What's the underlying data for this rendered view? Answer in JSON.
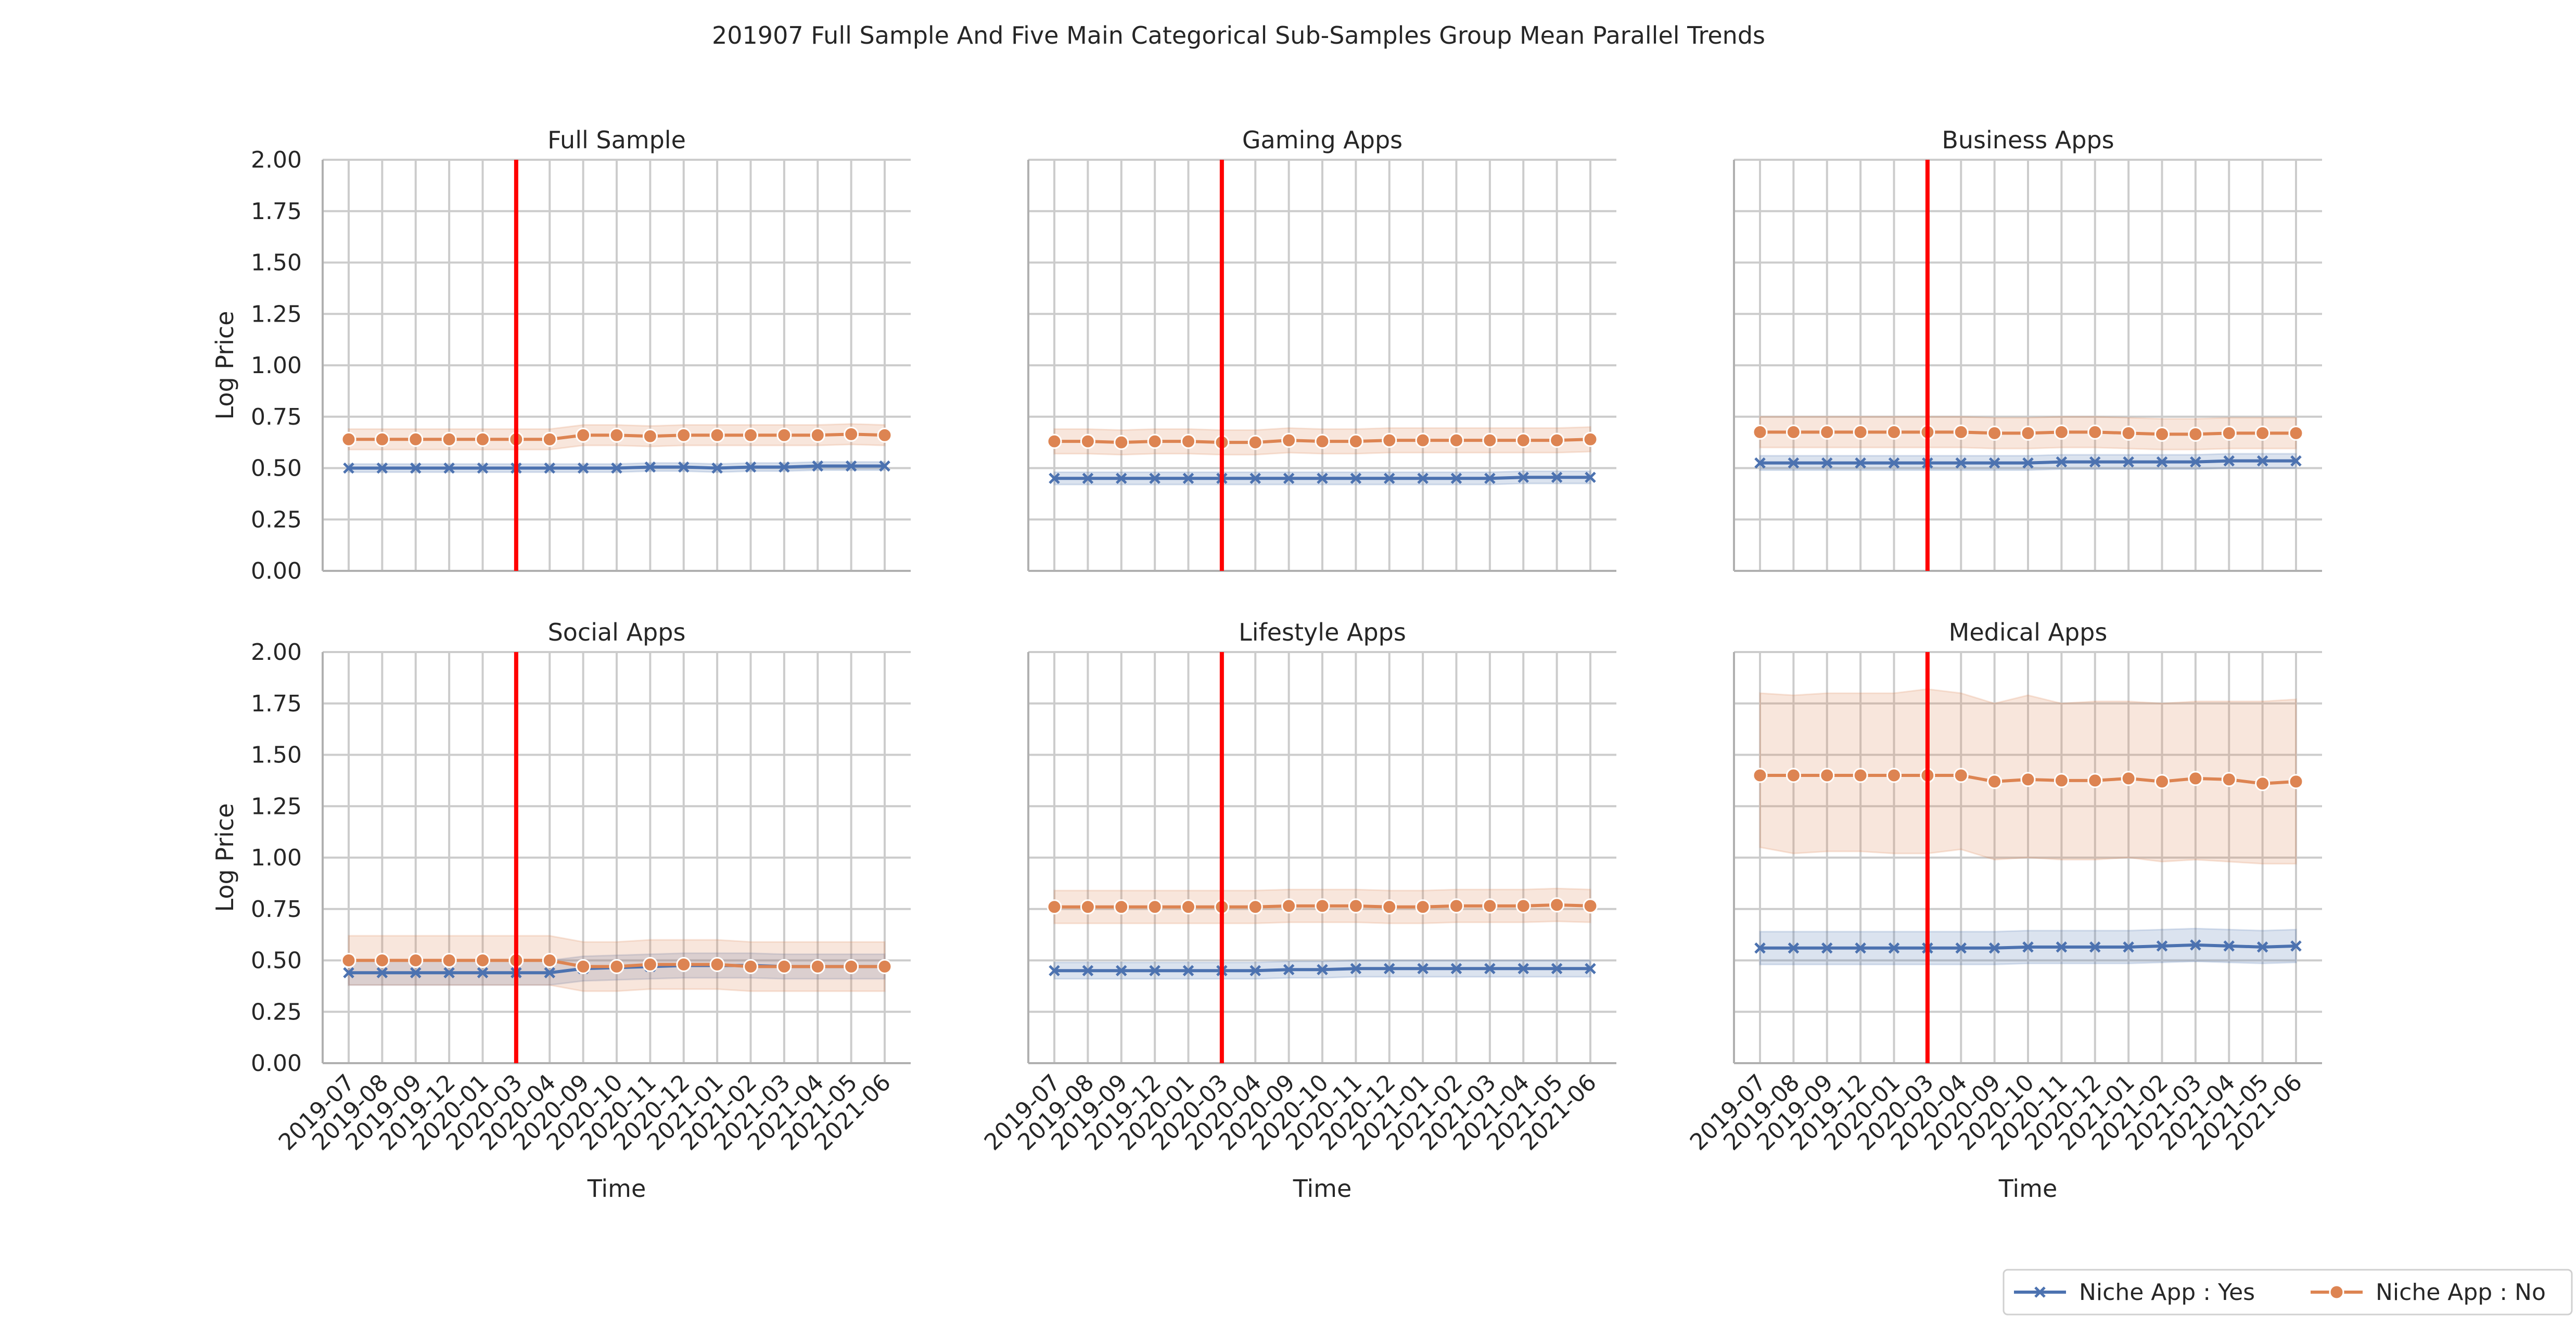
{
  "chart_data": {
    "type": "line",
    "title": "201907 Full Sample And Five Main Categorical Sub-Samples Group Mean Parallel Trends",
    "x": [
      "2019-07",
      "2019-08",
      "2019-09",
      "2019-12",
      "2020-01",
      "2020-03",
      "2020-04",
      "2020-09",
      "2020-10",
      "2020-11",
      "2020-12",
      "2021-01",
      "2021-02",
      "2021-03",
      "2021-04",
      "2021-05",
      "2021-06"
    ],
    "xlabel": "Time",
    "ylabel": "Log Price",
    "ylim": [
      0,
      2
    ],
    "yticks": [
      "0.00",
      "0.25",
      "0.50",
      "0.75",
      "1.00",
      "1.25",
      "1.50",
      "1.75",
      "2.00"
    ],
    "treatment_line_x": "2020-03",
    "grid": true,
    "legend": {
      "placement": "bottom-right",
      "entries": [
        "Niche App : Yes",
        "Niche App : No"
      ]
    },
    "colors": {
      "yes": "#4c72b0",
      "no": "#dd8452",
      "treatment": "#ff0000"
    },
    "panels": [
      {
        "title": "Full Sample",
        "series": [
          {
            "name": "Niche App : Yes",
            "values": [
              0.5,
              0.5,
              0.5,
              0.5,
              0.5,
              0.5,
              0.5,
              0.5,
              0.5,
              0.505,
              0.505,
              0.5,
              0.505,
              0.505,
              0.51,
              0.51,
              0.51
            ],
            "ci_low": [
              0.48,
              0.48,
              0.48,
              0.48,
              0.48,
              0.48,
              0.48,
              0.48,
              0.48,
              0.485,
              0.485,
              0.48,
              0.485,
              0.485,
              0.49,
              0.49,
              0.49
            ],
            "ci_high": [
              0.52,
              0.52,
              0.52,
              0.52,
              0.52,
              0.52,
              0.52,
              0.52,
              0.52,
              0.525,
              0.525,
              0.52,
              0.525,
              0.525,
              0.53,
              0.53,
              0.53
            ]
          },
          {
            "name": "Niche App : No",
            "values": [
              0.64,
              0.64,
              0.64,
              0.64,
              0.64,
              0.64,
              0.64,
              0.66,
              0.66,
              0.655,
              0.66,
              0.66,
              0.66,
              0.66,
              0.66,
              0.665,
              0.66
            ],
            "ci_low": [
              0.59,
              0.59,
              0.59,
              0.59,
              0.59,
              0.59,
              0.59,
              0.61,
              0.61,
              0.605,
              0.61,
              0.61,
              0.61,
              0.61,
              0.61,
              0.615,
              0.61
            ],
            "ci_high": [
              0.69,
              0.69,
              0.69,
              0.69,
              0.69,
              0.69,
              0.69,
              0.71,
              0.71,
              0.705,
              0.71,
              0.71,
              0.71,
              0.71,
              0.71,
              0.715,
              0.71
            ]
          }
        ]
      },
      {
        "title": "Gaming Apps",
        "series": [
          {
            "name": "Niche App : Yes",
            "values": [
              0.45,
              0.45,
              0.45,
              0.45,
              0.45,
              0.45,
              0.45,
              0.45,
              0.45,
              0.45,
              0.45,
              0.45,
              0.45,
              0.45,
              0.455,
              0.455,
              0.455
            ],
            "ci_low": [
              0.42,
              0.42,
              0.42,
              0.42,
              0.42,
              0.42,
              0.42,
              0.42,
              0.42,
              0.42,
              0.42,
              0.42,
              0.42,
              0.42,
              0.425,
              0.425,
              0.425
            ],
            "ci_high": [
              0.48,
              0.48,
              0.48,
              0.48,
              0.48,
              0.48,
              0.48,
              0.48,
              0.48,
              0.48,
              0.48,
              0.48,
              0.48,
              0.48,
              0.485,
              0.485,
              0.485
            ]
          },
          {
            "name": "Niche App : No",
            "values": [
              0.63,
              0.63,
              0.625,
              0.63,
              0.63,
              0.625,
              0.625,
              0.635,
              0.63,
              0.63,
              0.635,
              0.635,
              0.635,
              0.635,
              0.635,
              0.635,
              0.64
            ],
            "ci_low": [
              0.57,
              0.57,
              0.565,
              0.57,
              0.57,
              0.565,
              0.565,
              0.575,
              0.57,
              0.57,
              0.575,
              0.575,
              0.575,
              0.575,
              0.575,
              0.575,
              0.58
            ],
            "ci_high": [
              0.69,
              0.69,
              0.685,
              0.69,
              0.69,
              0.685,
              0.685,
              0.695,
              0.69,
              0.69,
              0.695,
              0.695,
              0.695,
              0.695,
              0.695,
              0.695,
              0.7
            ]
          }
        ]
      },
      {
        "title": "Business Apps",
        "series": [
          {
            "name": "Niche App : Yes",
            "values": [
              0.525,
              0.525,
              0.525,
              0.525,
              0.525,
              0.525,
              0.525,
              0.525,
              0.525,
              0.53,
              0.53,
              0.53,
              0.53,
              0.53,
              0.535,
              0.535,
              0.535
            ],
            "ci_low": [
              0.49,
              0.49,
              0.49,
              0.49,
              0.49,
              0.49,
              0.49,
              0.49,
              0.49,
              0.495,
              0.495,
              0.495,
              0.495,
              0.495,
              0.5,
              0.5,
              0.5
            ],
            "ci_high": [
              0.56,
              0.56,
              0.56,
              0.56,
              0.56,
              0.56,
              0.56,
              0.56,
              0.56,
              0.565,
              0.565,
              0.565,
              0.565,
              0.565,
              0.57,
              0.57,
              0.57
            ]
          },
          {
            "name": "Niche App : No",
            "values": [
              0.675,
              0.675,
              0.675,
              0.675,
              0.675,
              0.675,
              0.675,
              0.67,
              0.67,
              0.675,
              0.675,
              0.67,
              0.665,
              0.665,
              0.67,
              0.67,
              0.67
            ],
            "ci_low": [
              0.6,
              0.6,
              0.6,
              0.6,
              0.6,
              0.6,
              0.6,
              0.595,
              0.595,
              0.6,
              0.6,
              0.595,
              0.59,
              0.59,
              0.595,
              0.595,
              0.595
            ],
            "ci_high": [
              0.75,
              0.75,
              0.75,
              0.75,
              0.75,
              0.75,
              0.75,
              0.745,
              0.745,
              0.75,
              0.75,
              0.745,
              0.74,
              0.74,
              0.745,
              0.745,
              0.745
            ]
          }
        ]
      },
      {
        "title": "Social Apps",
        "series": [
          {
            "name": "Niche App : Yes",
            "values": [
              0.44,
              0.44,
              0.44,
              0.44,
              0.44,
              0.44,
              0.44,
              0.46,
              0.465,
              0.47,
              0.475,
              0.475,
              0.475,
              0.47,
              0.47,
              0.47,
              0.47
            ],
            "ci_low": [
              0.38,
              0.38,
              0.38,
              0.38,
              0.38,
              0.38,
              0.38,
              0.4,
              0.405,
              0.41,
              0.415,
              0.415,
              0.415,
              0.41,
              0.41,
              0.41,
              0.41
            ],
            "ci_high": [
              0.5,
              0.5,
              0.5,
              0.5,
              0.5,
              0.5,
              0.5,
              0.52,
              0.525,
              0.53,
              0.535,
              0.535,
              0.535,
              0.53,
              0.53,
              0.53,
              0.53
            ]
          },
          {
            "name": "Niche App : No",
            "values": [
              0.5,
              0.5,
              0.5,
              0.5,
              0.5,
              0.5,
              0.5,
              0.47,
              0.47,
              0.48,
              0.48,
              0.48,
              0.47,
              0.47,
              0.47,
              0.47,
              0.47
            ],
            "ci_low": [
              0.38,
              0.38,
              0.38,
              0.38,
              0.38,
              0.38,
              0.38,
              0.35,
              0.35,
              0.36,
              0.36,
              0.36,
              0.35,
              0.35,
              0.35,
              0.35,
              0.35
            ],
            "ci_high": [
              0.62,
              0.62,
              0.62,
              0.62,
              0.62,
              0.62,
              0.62,
              0.59,
              0.59,
              0.6,
              0.6,
              0.6,
              0.59,
              0.59,
              0.59,
              0.59,
              0.59
            ]
          }
        ]
      },
      {
        "title": "Lifestyle Apps",
        "series": [
          {
            "name": "Niche App : Yes",
            "values": [
              0.45,
              0.45,
              0.45,
              0.45,
              0.45,
              0.45,
              0.45,
              0.455,
              0.455,
              0.46,
              0.46,
              0.46,
              0.46,
              0.46,
              0.46,
              0.46,
              0.46
            ],
            "ci_low": [
              0.41,
              0.41,
              0.41,
              0.41,
              0.41,
              0.41,
              0.41,
              0.415,
              0.415,
              0.42,
              0.42,
              0.42,
              0.42,
              0.42,
              0.42,
              0.42,
              0.42
            ],
            "ci_high": [
              0.49,
              0.49,
              0.49,
              0.49,
              0.49,
              0.49,
              0.49,
              0.495,
              0.495,
              0.5,
              0.5,
              0.5,
              0.5,
              0.5,
              0.5,
              0.5,
              0.5
            ]
          },
          {
            "name": "Niche App : No",
            "values": [
              0.76,
              0.76,
              0.76,
              0.76,
              0.76,
              0.76,
              0.76,
              0.765,
              0.765,
              0.765,
              0.76,
              0.76,
              0.765,
              0.765,
              0.765,
              0.77,
              0.765
            ],
            "ci_low": [
              0.68,
              0.68,
              0.68,
              0.68,
              0.68,
              0.68,
              0.68,
              0.685,
              0.685,
              0.685,
              0.68,
              0.68,
              0.685,
              0.685,
              0.685,
              0.69,
              0.685
            ],
            "ci_high": [
              0.84,
              0.84,
              0.84,
              0.84,
              0.84,
              0.84,
              0.84,
              0.845,
              0.845,
              0.845,
              0.84,
              0.84,
              0.845,
              0.845,
              0.845,
              0.85,
              0.845
            ]
          }
        ]
      },
      {
        "title": "Medical Apps",
        "series": [
          {
            "name": "Niche App : Yes",
            "values": [
              0.56,
              0.56,
              0.56,
              0.56,
              0.56,
              0.56,
              0.56,
              0.56,
              0.565,
              0.565,
              0.565,
              0.565,
              0.57,
              0.575,
              0.57,
              0.565,
              0.57
            ],
            "ci_low": [
              0.48,
              0.48,
              0.48,
              0.48,
              0.48,
              0.48,
              0.48,
              0.48,
              0.485,
              0.485,
              0.485,
              0.485,
              0.49,
              0.495,
              0.49,
              0.485,
              0.49
            ],
            "ci_high": [
              0.64,
              0.64,
              0.64,
              0.64,
              0.64,
              0.64,
              0.64,
              0.64,
              0.645,
              0.645,
              0.645,
              0.645,
              0.65,
              0.655,
              0.65,
              0.645,
              0.65
            ]
          },
          {
            "name": "Niche App : No",
            "values": [
              1.4,
              1.4,
              1.4,
              1.4,
              1.4,
              1.4,
              1.4,
              1.37,
              1.38,
              1.375,
              1.375,
              1.385,
              1.37,
              1.385,
              1.38,
              1.36,
              1.37
            ],
            "ci_low": [
              1.05,
              1.02,
              1.03,
              1.03,
              1.02,
              1.02,
              1.04,
              0.99,
              1.0,
              0.99,
              0.99,
              1.0,
              0.98,
              0.99,
              0.98,
              0.97,
              0.97
            ],
            "ci_high": [
              1.8,
              1.79,
              1.8,
              1.8,
              1.8,
              1.82,
              1.8,
              1.75,
              1.79,
              1.75,
              1.76,
              1.76,
              1.75,
              1.76,
              1.76,
              1.76,
              1.77
            ]
          }
        ]
      }
    ]
  }
}
